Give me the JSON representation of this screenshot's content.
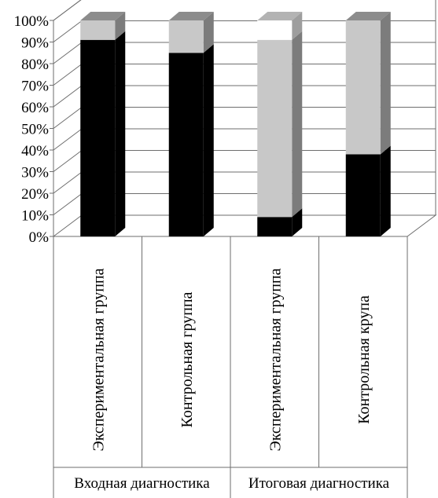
{
  "chart_data": {
    "type": "bar",
    "stacked": true,
    "three_d": true,
    "y_tick_labels": [
      "0%",
      "10%",
      "20%",
      "30%",
      "40%",
      "50%",
      "60%",
      "70%",
      "80%",
      "90%",
      "100%"
    ],
    "ylim": [
      0,
      100
    ],
    "grid": true,
    "categories": [
      "Экспериментальная группа",
      "Контрольная группа",
      "Экспериментальная группа",
      "Контрольная крупа"
    ],
    "category_groups": [
      {
        "label": "Входная диагностика",
        "span": [
          0,
          1
        ]
      },
      {
        "label": "Итоговая диагностика",
        "span": [
          2,
          3
        ]
      }
    ],
    "series": [
      {
        "color": "#000000",
        "values": [
          91,
          85,
          9,
          38
        ]
      },
      {
        "color": "#c8c8c8",
        "values": [
          9,
          15,
          82,
          62
        ]
      },
      {
        "color": "#ffffff",
        "values": [
          0,
          0,
          9,
          0
        ]
      }
    ]
  }
}
